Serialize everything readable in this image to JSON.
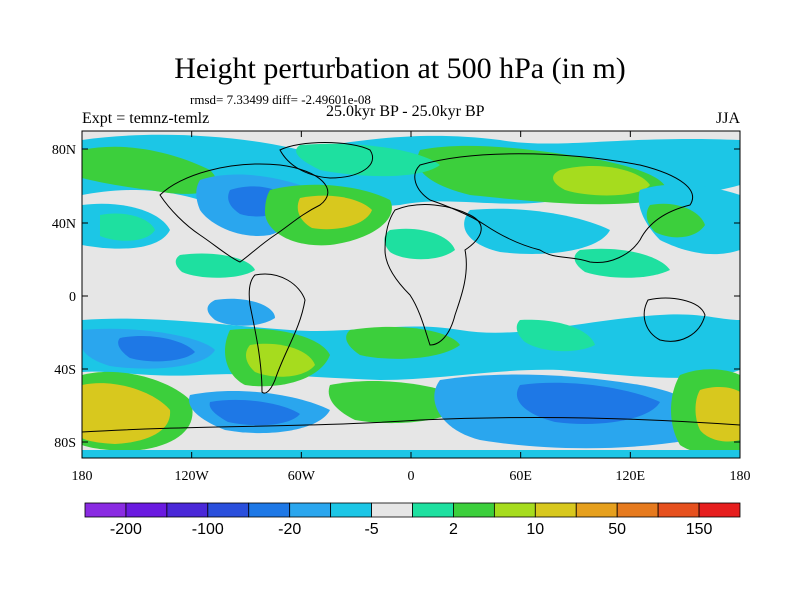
{
  "title": "Height perturbation at 500 hPa (in m)",
  "stats": "rmsd= 7.33499 diff= -2.49601e-08",
  "experiment": "Expt = temnz-temlz",
  "period": "25.0kyr BP - 25.0kyr BP",
  "season": "JJA",
  "lat_ticks": [
    "80N",
    "40N",
    "0",
    "40S",
    "80S"
  ],
  "lon_ticks": [
    "180",
    "120W",
    "60W",
    "0",
    "60E",
    "120E",
    "180"
  ],
  "colorbar": {
    "colors": [
      "#8a2be2",
      "#6a1ae0",
      "#4a28d8",
      "#2a4fdc",
      "#1e78e6",
      "#2aa6ee",
      "#1cc6e6",
      "#e6e6e6",
      "#1ee0a0",
      "#3ccf3c",
      "#a6dc1e",
      "#d8c81e",
      "#e6a01e",
      "#e67a1e",
      "#e6501e",
      "#e61e1e"
    ],
    "labels": [
      "-200",
      "-100",
      "-20",
      "-5",
      "2",
      "10",
      "50",
      "150"
    ]
  }
}
